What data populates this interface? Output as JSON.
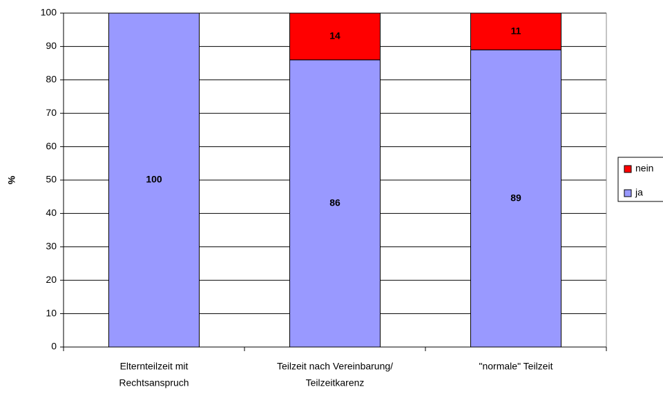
{
  "chart_data": {
    "type": "stacked_bar",
    "categories": [
      [
        "Elternteilzeit mit",
        "Rechtsanspruch"
      ],
      [
        "Teilzeit nach Vereinbarung/",
        "Teilzeitkarenz"
      ],
      [
        "\"normale\" Teilzeit"
      ]
    ],
    "series": [
      {
        "name": "ja",
        "color": "#9999ff",
        "values": [
          100,
          86,
          89
        ]
      },
      {
        "name": "nein",
        "color": "#ff0000",
        "values": [
          null,
          14,
          11
        ]
      }
    ],
    "y_label": "%",
    "ylim": [
      0,
      100
    ],
    "yticks": [
      0,
      10,
      20,
      30,
      40,
      50,
      60,
      70,
      80,
      90,
      100
    ],
    "grid": true,
    "legend": "right"
  }
}
